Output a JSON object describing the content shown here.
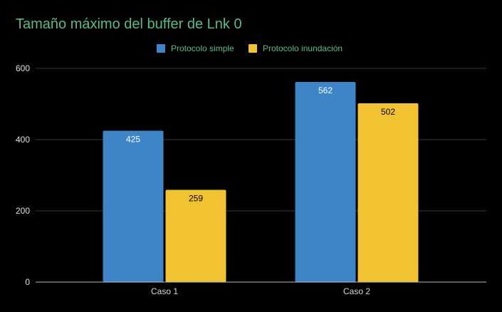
{
  "chart_data": {
    "type": "bar",
    "title": "Tamaño máximo del buffer de Lnk 0",
    "categories": [
      "Caso 1",
      "Caso 2"
    ],
    "series": [
      {
        "name": "Protocolo simple",
        "values": [
          425,
          562
        ],
        "color": "#4285f4"
      },
      {
        "name": "Protocolo inundación",
        "values": [
          259,
          502
        ],
        "color": "#f4c430"
      }
    ],
    "ylim": [
      0,
      600
    ],
    "yticks": [
      0,
      200,
      400,
      600
    ],
    "grid": true,
    "legend_position": "top-center",
    "title_color": "#57bb8a",
    "legend_text_color": "#57bb8a",
    "series_colors": [
      "#3d85c6",
      "#f1c232"
    ],
    "data_label_colors": [
      "#ffffff",
      "#000000"
    ]
  }
}
